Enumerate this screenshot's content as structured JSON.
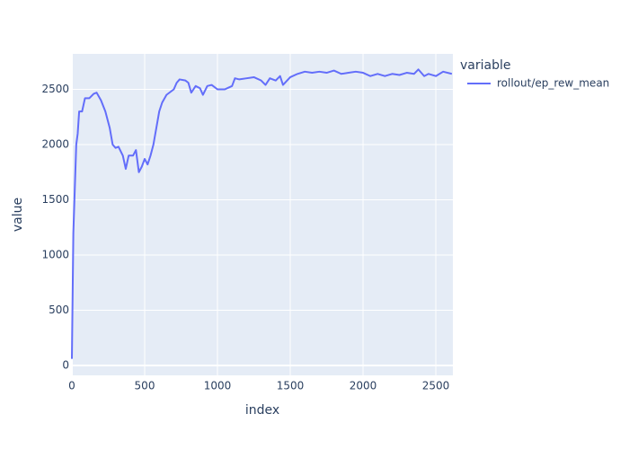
{
  "chart_data": {
    "type": "line",
    "xlabel": "index",
    "ylabel": "value",
    "legend_title": "variable",
    "legend_position": "right",
    "grid": true,
    "background": "#e5ecf6",
    "x": [
      0,
      10,
      20,
      30,
      40,
      50,
      70,
      90,
      120,
      150,
      170,
      200,
      230,
      260,
      280,
      300,
      320,
      350,
      370,
      390,
      420,
      440,
      460,
      480,
      500,
      520,
      540,
      560,
      580,
      600,
      620,
      650,
      700,
      720,
      740,
      780,
      800,
      820,
      850,
      880,
      900,
      930,
      960,
      1000,
      1050,
      1100,
      1120,
      1150,
      1200,
      1250,
      1300,
      1330,
      1360,
      1400,
      1430,
      1450,
      1500,
      1550,
      1600,
      1650,
      1700,
      1750,
      1800,
      1850,
      1900,
      1950,
      2000,
      2050,
      2100,
      2150,
      2200,
      2250,
      2300,
      2350,
      2380,
      2420,
      2450,
      2500,
      2550,
      2610
    ],
    "series": [
      {
        "name": "rollout/ep_rew_mean",
        "color": "#636efa",
        "values": [
          60,
          1200,
          1600,
          2000,
          2100,
          2300,
          2300,
          2420,
          2420,
          2460,
          2470,
          2400,
          2300,
          2150,
          2000,
          1970,
          1980,
          1900,
          1780,
          1900,
          1900,
          1950,
          1750,
          1800,
          1870,
          1820,
          1900,
          2000,
          2150,
          2300,
          2380,
          2450,
          2500,
          2560,
          2590,
          2580,
          2560,
          2470,
          2530,
          2510,
          2450,
          2530,
          2540,
          2500,
          2500,
          2530,
          2600,
          2590,
          2600,
          2610,
          2580,
          2540,
          2600,
          2580,
          2620,
          2540,
          2610,
          2640,
          2660,
          2650,
          2660,
          2650,
          2670,
          2640,
          2650,
          2660,
          2650,
          2620,
          2640,
          2620,
          2640,
          2630,
          2650,
          2640,
          2680,
          2620,
          2640,
          2620,
          2660,
          2640
        ]
      }
    ],
    "xlim": [
      0,
      2617
    ],
    "ylim": [
      -89,
      2821
    ],
    "xticks": [
      0,
      500,
      1000,
      1500,
      2000,
      2500
    ],
    "yticks": [
      0,
      500,
      1000,
      1500,
      2000,
      2500
    ]
  }
}
